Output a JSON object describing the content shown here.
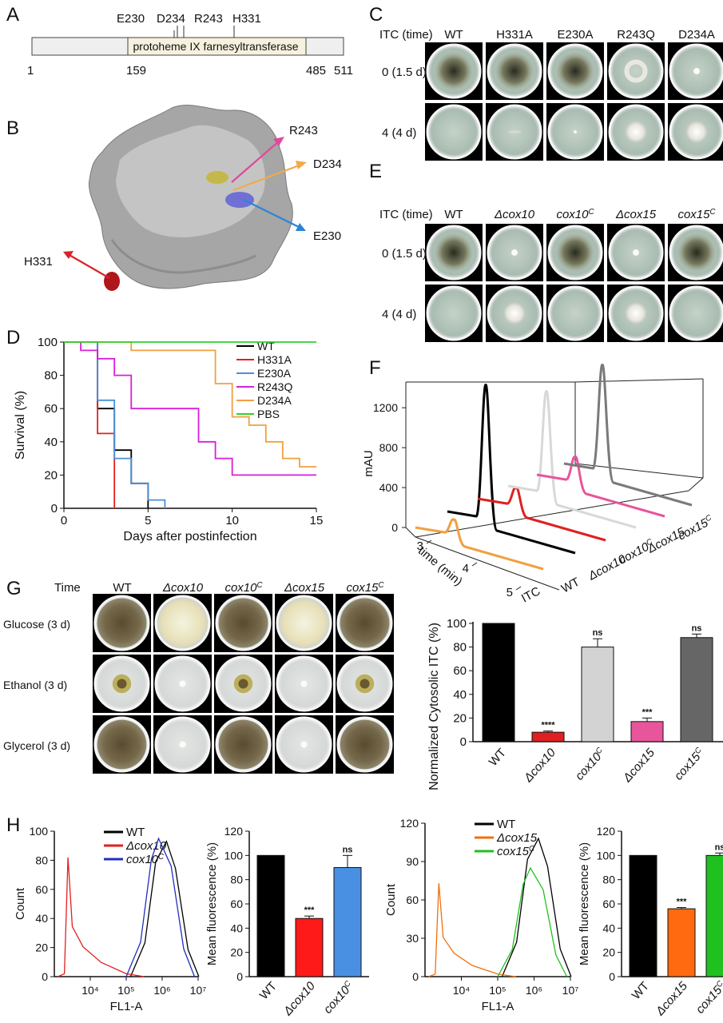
{
  "panels": {
    "a": "A",
    "b": "B",
    "c": "C",
    "d": "D",
    "e": "E",
    "f": "F",
    "g": "G",
    "h": "H"
  },
  "panel_a": {
    "domain": "protoheme IX farnesyltransferase",
    "sites": [
      "E230",
      "D234",
      "R243",
      "H331"
    ],
    "positions": [
      "1",
      "159",
      "485",
      "511"
    ]
  },
  "panel_b": {
    "labels": [
      "R243",
      "D234",
      "E230",
      "H331"
    ]
  },
  "panel_c": {
    "row_header": "ITC (time)",
    "columns": [
      "WT",
      "H331A",
      "E230A",
      "R243Q",
      "D234A"
    ],
    "rows": [
      "0 (1.5 d)",
      "4 (4 d)"
    ]
  },
  "panel_e": {
    "row_header": "ITC (time)",
    "columns": [
      {
        "pre": "",
        "main": "WT",
        "sup": "",
        "italic": false
      },
      {
        "pre": "Δ",
        "main": "cox10",
        "sup": "",
        "italic": true
      },
      {
        "pre": "",
        "main": "cox10",
        "sup": "C",
        "italic": true
      },
      {
        "pre": "Δ",
        "main": "cox15",
        "sup": "",
        "italic": true
      },
      {
        "pre": "",
        "main": "cox15",
        "sup": "C",
        "italic": true
      }
    ],
    "rows": [
      "0 (1.5 d)",
      "4 (4 d)"
    ]
  },
  "panel_g": {
    "row_header": "Time",
    "columns": [
      {
        "pre": "",
        "main": "WT",
        "sup": "",
        "italic": false
      },
      {
        "pre": "Δ",
        "main": "cox10",
        "sup": "",
        "italic": true
      },
      {
        "pre": "",
        "main": "cox10",
        "sup": "C",
        "italic": true
      },
      {
        "pre": "Δ",
        "main": "cox15",
        "sup": "",
        "italic": true
      },
      {
        "pre": "",
        "main": "cox15",
        "sup": "C",
        "italic": true
      }
    ],
    "rows": [
      "Glucose (3 d)",
      "Ethanol (3 d)",
      "Glycerol (3 d)"
    ]
  },
  "colors": {
    "wt": "#000000",
    "h331a": "#e02020",
    "e230a": "#4a90d9",
    "r243q": "#d81fd8",
    "d234a": "#f0a040",
    "pbs": "#2fd02f",
    "itc": "#f0a040",
    "dcox10": "#e02020",
    "cox10c": "#d8d8d8",
    "dcox15": "#e8559a",
    "cox15c": "#7a7a7a",
    "blue": "#4a90e2",
    "orange": "#ff6a10",
    "green": "#20c020"
  },
  "chart_data": [
    {
      "type": "line",
      "panel": "D",
      "xlabel": "Days after postinfection",
      "ylabel": "Survival (%)",
      "xlim": [
        0,
        15
      ],
      "ylim": [
        0,
        100
      ],
      "xticks": [
        "0",
        "5",
        "10",
        "15"
      ],
      "yticks": [
        "0",
        "20",
        "40",
        "60",
        "80",
        "100"
      ],
      "legend_placement": "top-right",
      "series": [
        {
          "name": "WT",
          "color": "#000000",
          "x": [
            0,
            2,
            2,
            3,
            3,
            4,
            4,
            5,
            5
          ],
          "y": [
            100,
            100,
            60,
            60,
            35,
            35,
            15,
            15,
            0
          ]
        },
        {
          "name": "H331A",
          "color": "#e02020",
          "x": [
            0,
            2,
            2,
            3,
            3
          ],
          "y": [
            100,
            100,
            45,
            45,
            0
          ]
        },
        {
          "name": "E230A",
          "color": "#4a90d9",
          "x": [
            0,
            2,
            2,
            3,
            3,
            4,
            4,
            5,
            5,
            6,
            6
          ],
          "y": [
            100,
            100,
            65,
            65,
            30,
            30,
            15,
            15,
            5,
            5,
            0
          ]
        },
        {
          "name": "R243Q",
          "color": "#d81fd8",
          "x": [
            0,
            1,
            1,
            2,
            2,
            3,
            3,
            4,
            4,
            8,
            8,
            9,
            9,
            10,
            10,
            15
          ],
          "y": [
            100,
            100,
            95,
            95,
            90,
            90,
            80,
            80,
            60,
            60,
            40,
            40,
            30,
            30,
            20,
            20
          ]
        },
        {
          "name": "D234A",
          "color": "#f0a040",
          "x": [
            0,
            4,
            4,
            9,
            9,
            10,
            10,
            11,
            11,
            12,
            12,
            13,
            13,
            14,
            14,
            15
          ],
          "y": [
            100,
            100,
            95,
            95,
            75,
            75,
            55,
            55,
            50,
            50,
            40,
            40,
            30,
            30,
            25,
            25
          ]
        },
        {
          "name": "PBS",
          "color": "#2fd02f",
          "x": [
            0,
            15
          ],
          "y": [
            100,
            100
          ]
        }
      ]
    },
    {
      "type": "line",
      "panel": "F",
      "xlabel": "time (min)",
      "ylabel": "mAU",
      "ylim": [
        0,
        1400
      ],
      "yticks": [
        "0",
        "400",
        "800",
        "1200"
      ],
      "xticks": [
        "3",
        "4",
        "5"
      ],
      "series": [
        {
          "name": "ITC",
          "color": "#f0a040",
          "peak_height": 110
        },
        {
          "name": "WT",
          "color": "#000000",
          "peak_height": 1300
        },
        {
          "name": "Δcox10",
          "color": "#e02020",
          "peak_height": 140
        },
        {
          "name": "cox10C",
          "color": "#d8d8d8",
          "peak_height": 980
        },
        {
          "name": "Δcox15",
          "color": "#e8559a",
          "peak_height": 210
        },
        {
          "name": "cox15C",
          "color": "#7a7a7a",
          "peak_height": 1020
        }
      ]
    },
    {
      "type": "bar",
      "panel": "G",
      "ylabel": "Normalized Cytosolic ITC (%)",
      "ylim": [
        0,
        100
      ],
      "yticks": [
        "0",
        "20",
        "40",
        "60",
        "80",
        "100"
      ],
      "categories": [
        "WT",
        "Δcox10",
        "cox10C",
        "Δcox15",
        "cox15C"
      ],
      "values": [
        100,
        8,
        80,
        17,
        88
      ],
      "errors": [
        0,
        1,
        7,
        3,
        3
      ],
      "colors": [
        "#000000",
        "#e02020",
        "#d3d3d3",
        "#e8559a",
        "#666666"
      ],
      "annotations": [
        "",
        "****",
        "ns",
        "***",
        "ns"
      ]
    },
    {
      "type": "line",
      "panel": "H-left-histogram",
      "xlabel": "FL1-A",
      "ylabel": "Count",
      "ylim": [
        0,
        100
      ],
      "yticks": [
        "0",
        "20",
        "40",
        "60",
        "80",
        "100"
      ],
      "xticks": [
        "10⁴",
        "10⁵",
        "10⁶",
        "10⁷"
      ],
      "legend_placement": "top-right",
      "series": [
        {
          "name": "WT",
          "color": "#000000",
          "peak_log10": 6.0,
          "peak_count": 93
        },
        {
          "name": "Δcox10",
          "color": "#e02020",
          "peak_log10": 3.5,
          "peak_count": 82
        },
        {
          "name": "cox10C",
          "color": "#2030c0",
          "peak_log10": 5.9,
          "peak_count": 95
        }
      ]
    },
    {
      "type": "bar",
      "panel": "H-left-bars",
      "ylabel": "Mean fluorescence (%)",
      "ylim": [
        0,
        120
      ],
      "yticks": [
        "0",
        "20",
        "40",
        "60",
        "80",
        "100",
        "120"
      ],
      "categories": [
        "WT",
        "Δcox10",
        "cox10C"
      ],
      "values": [
        100,
        48,
        90
      ],
      "errors": [
        0,
        2,
        10
      ],
      "colors": [
        "#000000",
        "#ff1a1a",
        "#4a90e2"
      ],
      "annotations": [
        "",
        "***",
        "ns"
      ]
    },
    {
      "type": "line",
      "panel": "H-right-histogram",
      "xlabel": "FL1-A",
      "ylabel": "Count",
      "ylim": [
        0,
        120
      ],
      "yticks": [
        "0",
        "30",
        "60",
        "90",
        "120"
      ],
      "xticks": [
        "10⁴",
        "10⁵",
        "10⁶",
        "10⁷"
      ],
      "legend_placement": "top-right",
      "series": [
        {
          "name": "WT",
          "color": "#000000",
          "peak_log10": 6.0,
          "peak_count": 108
        },
        {
          "name": "Δcox15",
          "color": "#f07010",
          "peak_log10": 3.5,
          "peak_count": 73
        },
        {
          "name": "cox15C",
          "color": "#20c020",
          "peak_log10": 5.9,
          "peak_count": 85
        }
      ]
    },
    {
      "type": "bar",
      "panel": "H-right-bars",
      "ylabel": "Mean fluorescence (%)",
      "ylim": [
        0,
        120
      ],
      "yticks": [
        "0",
        "20",
        "40",
        "60",
        "80",
        "100",
        "120"
      ],
      "categories": [
        "WT",
        "Δcox15",
        "cox15C"
      ],
      "values": [
        100,
        56,
        100
      ],
      "errors": [
        0,
        1,
        2
      ],
      "colors": [
        "#000000",
        "#ff6a10",
        "#20c020"
      ],
      "annotations": [
        "",
        "***",
        "ns"
      ]
    }
  ]
}
